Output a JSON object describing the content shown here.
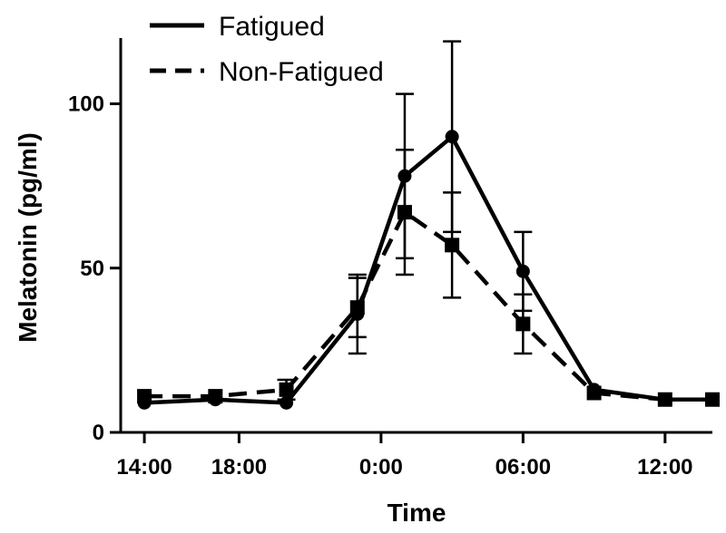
{
  "chart_data": {
    "type": "line",
    "title": "",
    "xlabel": "Time",
    "ylabel": "Melatonin (pg/ml)",
    "x_tick_labels": [
      "14:00",
      "18:00",
      "0:00",
      "06:00",
      "12:00"
    ],
    "x_tick_hours": [
      14,
      18,
      24,
      30,
      36
    ],
    "y_ticks": [
      0,
      50,
      100
    ],
    "xlim_hours": [
      13,
      38
    ],
    "ylim": [
      0,
      120
    ],
    "legend_position": "top-left",
    "x_hours": [
      14,
      17,
      20,
      23,
      25,
      27,
      30,
      33,
      36,
      38
    ],
    "series": [
      {
        "name": "Fatigued",
        "line_style": "solid",
        "marker": "circle",
        "values": [
          9,
          10,
          9,
          36,
          78,
          90,
          49,
          13,
          10,
          10
        ],
        "error": [
          0,
          0,
          0,
          12,
          25,
          29,
          12,
          0,
          0,
          0
        ]
      },
      {
        "name": "Non-Fatigued",
        "line_style": "dashed",
        "marker": "square",
        "values": [
          11,
          11,
          13,
          38,
          67,
          57,
          33,
          12,
          10,
          10
        ],
        "error": [
          0,
          0,
          3,
          9,
          19,
          16,
          9,
          0,
          0,
          0
        ]
      }
    ],
    "color": "#000000"
  }
}
